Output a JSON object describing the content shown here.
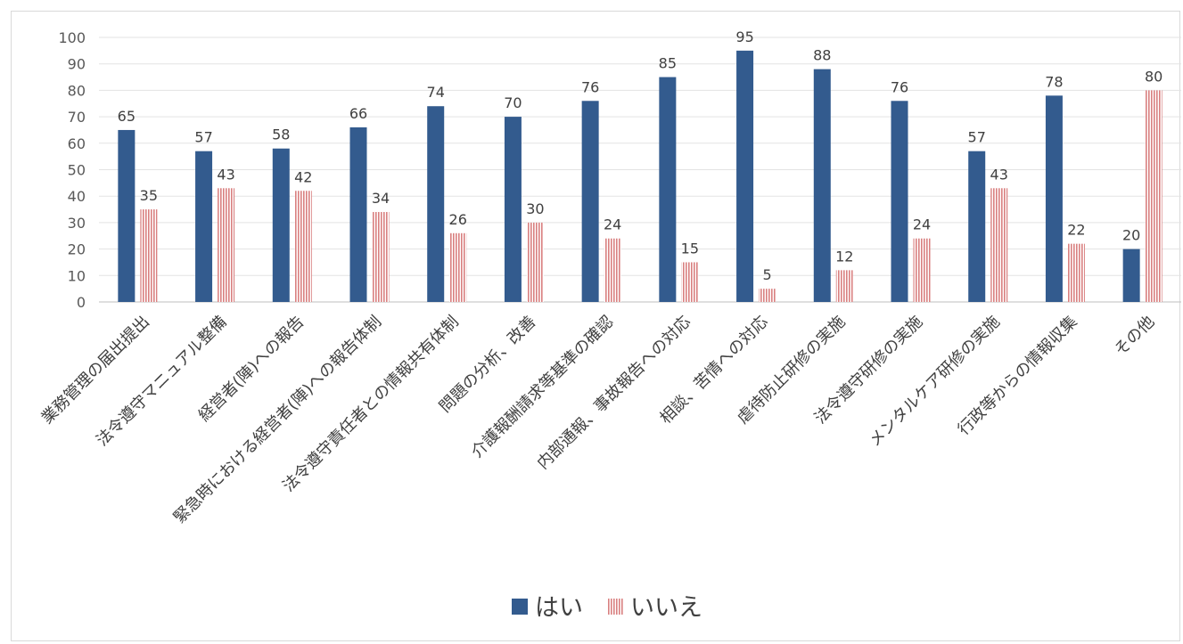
{
  "chart_data": {
    "type": "bar",
    "categories": [
      "業務管理の届出提出",
      "法令遵守マニュアル整備",
      "経営者(陣)への報告",
      "緊急時における経営者(陣)への報告体制",
      "法令遵守責任者との情報共有体制",
      "問題の分析、改善",
      "介護報酬請求等基準の確認",
      "内部通報、事故報告への対応",
      "相談、苦情への対応",
      "虐待防止研修の実施",
      "法令遵守研修の実施",
      "メンタルケア研修の実施",
      "行政等からの情報収集",
      "その他"
    ],
    "series": [
      {
        "name": "はい",
        "values": [
          65,
          57,
          58,
          66,
          74,
          70,
          76,
          85,
          95,
          88,
          76,
          57,
          78,
          20
        ],
        "color": "#335b8e"
      },
      {
        "name": "いいえ",
        "values": [
          35,
          43,
          42,
          34,
          26,
          30,
          24,
          15,
          5,
          12,
          24,
          43,
          22,
          80
        ],
        "color": "#e6a3a3"
      }
    ],
    "ylim": [
      0,
      100
    ],
    "yticks": [
      0,
      10,
      20,
      30,
      40,
      50,
      60,
      70,
      80,
      90,
      100
    ],
    "grid": true,
    "legend": "bottom"
  }
}
